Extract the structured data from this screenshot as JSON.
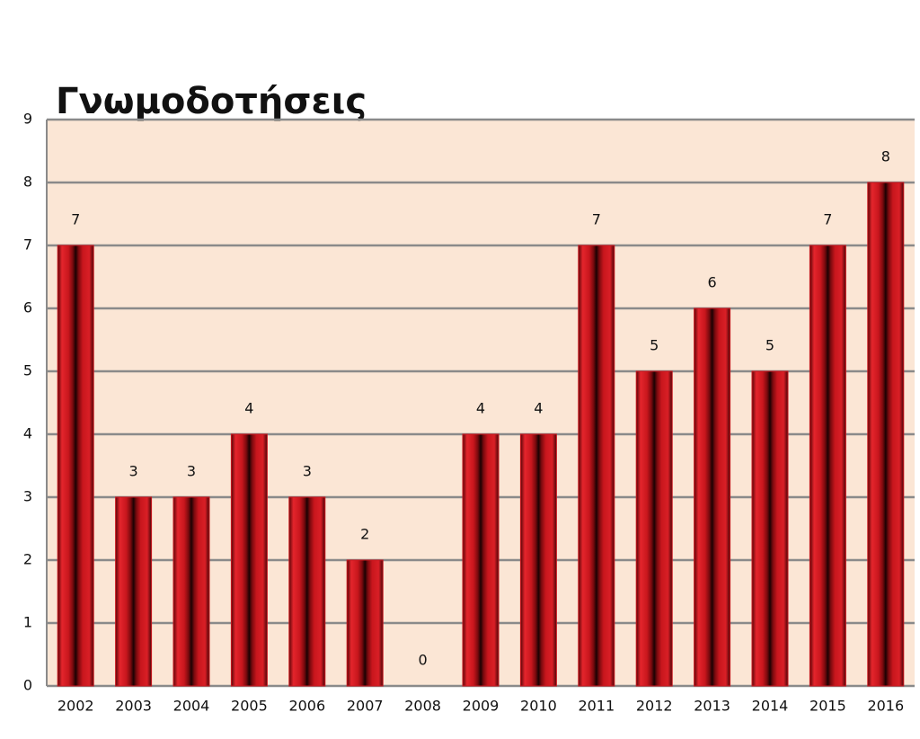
{
  "chart_data": {
    "type": "bar",
    "title": "Γνωμοδοτήσεις",
    "categories": [
      "2002",
      "2003",
      "2004",
      "2005",
      "2006",
      "2007",
      "2008",
      "2009",
      "2010",
      "2011",
      "2012",
      "2013",
      "2014",
      "2015",
      "2016"
    ],
    "values": [
      7,
      3,
      3,
      4,
      3,
      2,
      0,
      4,
      4,
      7,
      5,
      6,
      5,
      7,
      8
    ],
    "color": "#c8161d",
    "ylim": [
      0,
      9
    ],
    "yticks": [
      0,
      1,
      2,
      3,
      4,
      5,
      6,
      7,
      8,
      9
    ],
    "grid": true
  }
}
